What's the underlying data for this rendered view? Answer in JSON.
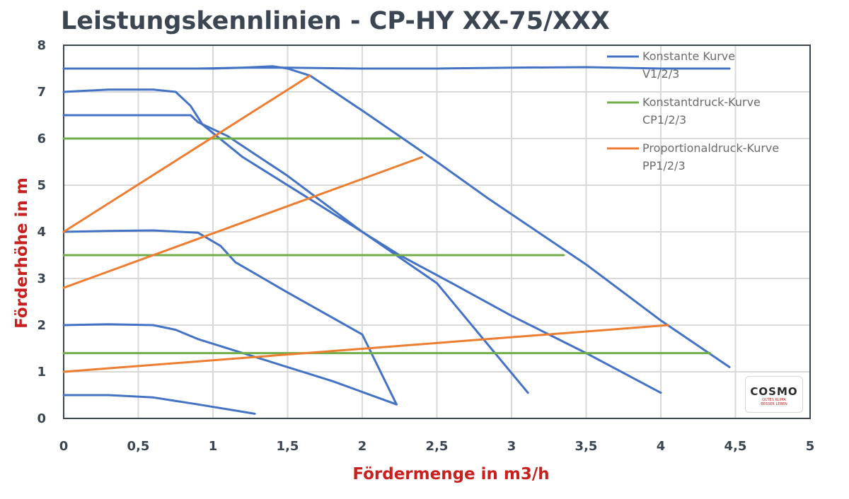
{
  "chart_data": {
    "type": "line",
    "title": "Leistungskennlinien - CP-HY XX-75/XXX",
    "xlabel": "Fördermenge in m3/h",
    "ylabel": "Förderhöhe in m",
    "xlim": [
      0,
      5
    ],
    "ylim": [
      0,
      8
    ],
    "xticks": [
      "0",
      "0,5",
      "1",
      "1,5",
      "2",
      "2,5",
      "3",
      "3,5",
      "4",
      "4,5",
      "5"
    ],
    "yticks": [
      "0",
      "1",
      "2",
      "3",
      "4",
      "5",
      "6",
      "7",
      "8"
    ],
    "grid": true,
    "legend_position": "top-right",
    "legend": [
      {
        "line1": "Konstante Kurve",
        "line2": "V1/2/3",
        "color": "#4472c4"
      },
      {
        "line1": "Konstantdruck-Kurve",
        "line2": "CP1/2/3",
        "color": "#70ad47"
      },
      {
        "line1": "Proportionaldruck-Kurve",
        "line2": "PP1/2/3",
        "color": "#ed7d31"
      }
    ],
    "series": [
      {
        "group": "constant",
        "color": "#4472c4",
        "x": [
          0,
          0.3,
          0.6,
          0.8,
          0.9,
          1.0,
          1.2,
          1.5,
          2.0,
          2.5,
          3.0,
          3.5,
          4.0,
          4.46
        ],
        "y": [
          7.5,
          7.5,
          7.5,
          7.5,
          7.5,
          7.5,
          7.52,
          7.52,
          7.5,
          7.5,
          7.52,
          7.53,
          7.5,
          7.5
        ]
      },
      {
        "group": "constant",
        "color": "#4472c4",
        "x": [
          0,
          0.3,
          0.6,
          0.9,
          1.2,
          1.4,
          1.5,
          1.65,
          2.0,
          2.5,
          2.85,
          3.5,
          4.0,
          4.46
        ],
        "y": [
          7.5,
          7.5,
          7.5,
          7.5,
          7.52,
          7.55,
          7.5,
          7.35,
          6.6,
          5.5,
          4.7,
          3.3,
          2.1,
          1.1
        ]
      },
      {
        "group": "constant",
        "color": "#4472c4",
        "x": [
          0,
          0.3,
          0.6,
          0.75,
          0.85,
          0.93,
          1.2,
          1.6,
          2.0,
          2.25,
          2.6,
          3.0,
          3.5,
          4.0
        ],
        "y": [
          7.0,
          7.05,
          7.05,
          7.0,
          6.7,
          6.3,
          5.6,
          4.8,
          4.0,
          3.5,
          2.9,
          2.2,
          1.4,
          0.55
        ]
      },
      {
        "group": "constant",
        "color": "#4472c4",
        "x": [
          0,
          0.3,
          0.6,
          0.85,
          0.9,
          1.1,
          1.5,
          2.0,
          2.5,
          3.11
        ],
        "y": [
          6.5,
          6.5,
          6.5,
          6.5,
          6.35,
          6.05,
          5.2,
          4.0,
          2.9,
          0.55
        ]
      },
      {
        "group": "constant",
        "color": "#4472c4",
        "x": [
          0,
          0.3,
          0.6,
          0.9,
          1.05,
          1.15,
          1.5,
          2.0,
          2.23
        ],
        "y": [
          4.0,
          4.02,
          4.03,
          3.98,
          3.7,
          3.35,
          2.7,
          1.8,
          0.3
        ]
      },
      {
        "group": "constant",
        "color": "#4472c4",
        "x": [
          0,
          0.3,
          0.6,
          0.75,
          0.9,
          1.2,
          1.5,
          1.8,
          2.23
        ],
        "y": [
          2.0,
          2.02,
          2.0,
          1.9,
          1.7,
          1.4,
          1.1,
          0.8,
          0.3
        ]
      },
      {
        "group": "constant",
        "color": "#4472c4",
        "x": [
          0,
          0.3,
          0.6,
          0.9,
          1.28
        ],
        "y": [
          0.5,
          0.5,
          0.45,
          0.3,
          0.1
        ]
      },
      {
        "group": "constant_pressure",
        "color": "#70ad47",
        "x": [
          0,
          2.25
        ],
        "y": [
          6.0,
          6.0
        ]
      },
      {
        "group": "constant_pressure",
        "color": "#70ad47",
        "x": [
          0,
          3.35
        ],
        "y": [
          3.5,
          3.5
        ]
      },
      {
        "group": "constant_pressure",
        "color": "#70ad47",
        "x": [
          0,
          4.33
        ],
        "y": [
          1.4,
          1.4
        ]
      },
      {
        "group": "proportional_pressure",
        "color": "#ed7d31",
        "x": [
          0,
          1.65
        ],
        "y": [
          4.0,
          7.35
        ]
      },
      {
        "group": "proportional_pressure",
        "color": "#ed7d31",
        "x": [
          0,
          2.4
        ],
        "y": [
          2.8,
          5.6
        ]
      },
      {
        "group": "proportional_pressure",
        "color": "#ed7d31",
        "x": [
          0,
          4.05
        ],
        "y": [
          1.0,
          2.0
        ]
      }
    ]
  },
  "logo": {
    "main": "COSMO",
    "sub1": "GUTES KLIMA",
    "sub2": "BESSER LEBEN"
  }
}
